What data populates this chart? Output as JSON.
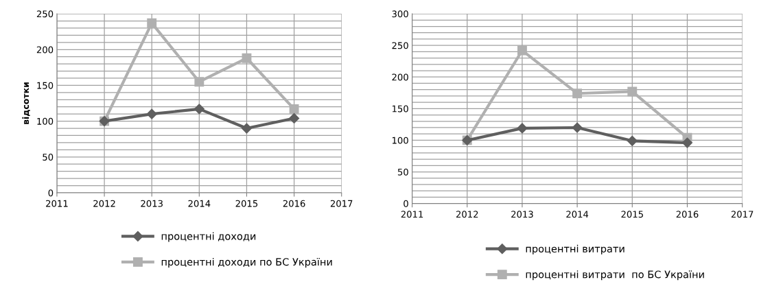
{
  "chart_data": [
    {
      "type": "line",
      "ylabel": "відсотки",
      "x": [
        2012,
        2013,
        2014,
        2015,
        2016
      ],
      "xlim": [
        2011,
        2017
      ],
      "xticks": [
        2011,
        2012,
        2013,
        2014,
        2015,
        2016,
        2017
      ],
      "ylim": [
        0,
        250
      ],
      "yticks": [
        0,
        {
          "value": 10,
          "label": null
        },
        {
          "value": 20,
          "label": null
        },
        {
          "value": 30,
          "label": null
        },
        {
          "value": 40,
          "label": null
        },
        50,
        {
          "value": 60,
          "label": null
        },
        {
          "value": 70,
          "label": null
        },
        {
          "value": 80,
          "label": null
        },
        {
          "value": 90,
          "label": null
        },
        100,
        {
          "value": 110,
          "label": null
        },
        {
          "value": 120,
          "label": null
        },
        {
          "value": 130,
          "label": null
        },
        {
          "value": 140,
          "label": null
        },
        150,
        {
          "value": 160,
          "label": null
        },
        {
          "value": 170,
          "label": null
        },
        {
          "value": 180,
          "label": null
        },
        {
          "value": 190,
          "label": null
        },
        200,
        {
          "value": 210,
          "label": null
        },
        {
          "value": 220,
          "label": null
        },
        {
          "value": 230,
          "label": null
        },
        {
          "value": 240,
          "label": null
        },
        250
      ],
      "grid": true,
      "legend": "bottom",
      "series": [
        {
          "name": "процентні доходи",
          "color": "#5f5f5f",
          "marker": "diamond",
          "values": [
            100,
            110,
            117,
            90,
            104
          ]
        },
        {
          "name": "процентні доходи по БС України",
          "color": "#b0b0b0",
          "marker": "square",
          "values": [
            100,
            237,
            155,
            188,
            117
          ]
        }
      ]
    },
    {
      "type": "line",
      "x": [
        2012,
        2013,
        2014,
        2015,
        2016
      ],
      "xlim": [
        2011,
        2017
      ],
      "xticks": [
        2011,
        2012,
        2013,
        2014,
        2015,
        2016,
        2017
      ],
      "ylim": [
        0,
        300
      ],
      "yticks": [
        0,
        {
          "value": 10,
          "label": null
        },
        {
          "value": 20,
          "label": null
        },
        {
          "value": 30,
          "label": null
        },
        {
          "value": 40,
          "label": null
        },
        50,
        {
          "value": 60,
          "label": null
        },
        {
          "value": 70,
          "label": null
        },
        {
          "value": 80,
          "label": null
        },
        {
          "value": 90,
          "label": null
        },
        100,
        {
          "value": 110,
          "label": null
        },
        {
          "value": 120,
          "label": null
        },
        {
          "value": 130,
          "label": null
        },
        {
          "value": 140,
          "label": null
        },
        150,
        {
          "value": 160,
          "label": null
        },
        {
          "value": 170,
          "label": null
        },
        {
          "value": 180,
          "label": null
        },
        {
          "value": 190,
          "label": null
        },
        200,
        {
          "value": 210,
          "label": null
        },
        {
          "value": 220,
          "label": null
        },
        {
          "value": 230,
          "label": null
        },
        {
          "value": 240,
          "label": null
        },
        250,
        {
          "value": 260,
          "label": null
        },
        {
          "value": 270,
          "label": null
        },
        {
          "value": 280,
          "label": null
        },
        {
          "value": 290,
          "label": null
        },
        300
      ],
      "grid": true,
      "legend": "bottom",
      "series": [
        {
          "name": "процентні витрати",
          "color": "#5f5f5f",
          "marker": "diamond",
          "values": [
            100,
            119,
            120,
            99,
            96
          ]
        },
        {
          "name": "процентні витрати  по БС України",
          "color": "#b0b0b0",
          "marker": "square",
          "values": [
            100,
            242,
            174,
            177,
            104
          ]
        }
      ]
    }
  ]
}
